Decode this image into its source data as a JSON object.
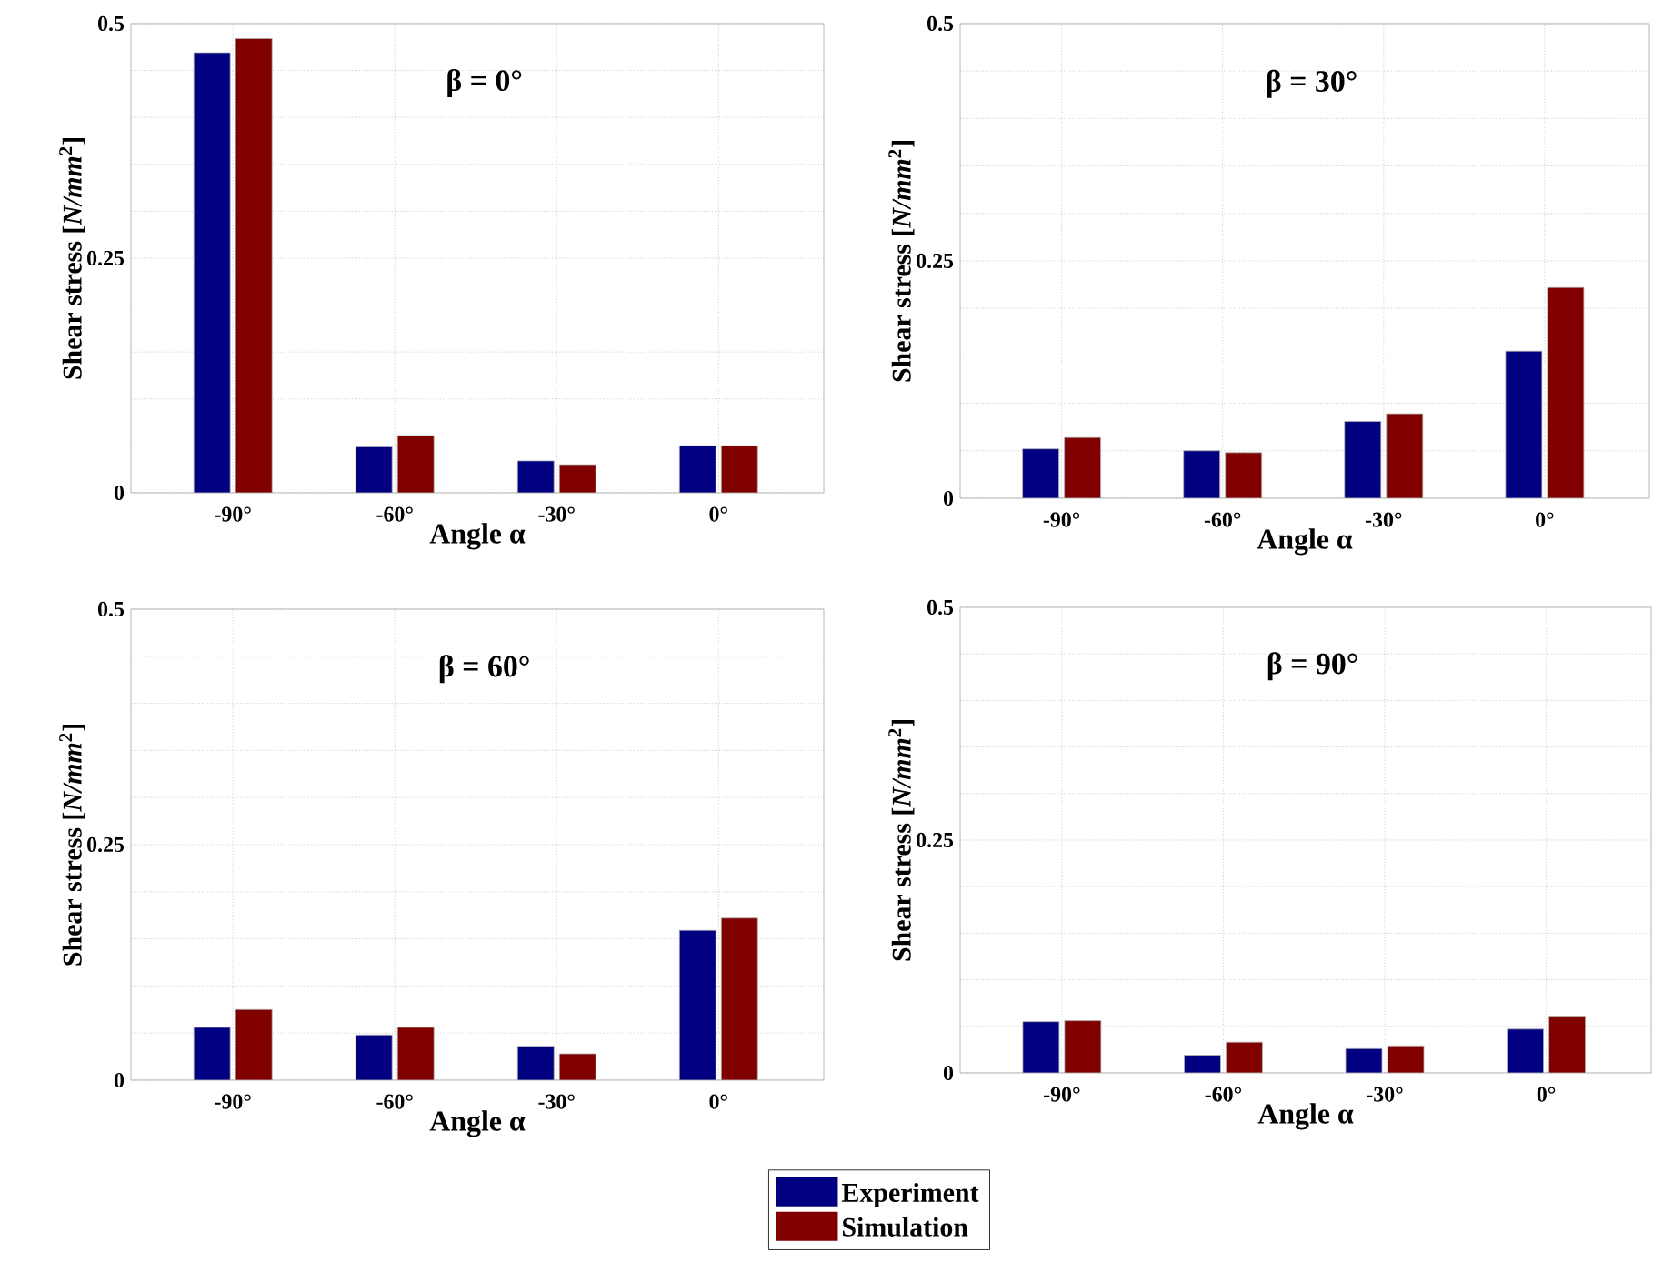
{
  "chart_data": [
    {
      "type": "bar",
      "title": "β = 0°",
      "xlabel": "Angle α",
      "ylabel": "Shear stress [*N/mm*$^{2}$]",
      "categories": [
        "-90°",
        "-60°",
        "-30°",
        "0°"
      ],
      "series": [
        {
          "color": "#000080",
          "values": [
            0.469,
            0.049,
            0.034,
            0.05
          ]
        },
        {
          "color": "#800000",
          "values": [
            0.484,
            0.061,
            0.03,
            0.05
          ]
        }
      ],
      "ylim": [
        0,
        0.5
      ],
      "yticks": [
        0,
        {
          "value": 0.05,
          "label": null
        },
        {
          "value": 0.1,
          "label": null
        },
        {
          "value": 0.15,
          "label": null
        },
        {
          "value": 0.2,
          "label": null
        },
        0.25,
        {
          "value": 0.3,
          "label": null
        },
        {
          "value": 0.35,
          "label": null
        },
        {
          "value": 0.4,
          "label": null
        },
        {
          "value": 0.45,
          "label": null
        },
        0.5
      ],
      "grid": true
    },
    {
      "type": "bar",
      "title": "β = 30°",
      "xlabel": "Angle α",
      "ylabel": "Shear stress [*N/mm*$^{2}$]",
      "categories": [
        "-90°",
        "-60°",
        "-30°",
        "0°"
      ],
      "series": [
        {
          "color": "#000080",
          "values": [
            0.052,
            0.05,
            0.081,
            0.155
          ]
        },
        {
          "color": "#800000",
          "values": [
            0.064,
            0.048,
            0.089,
            0.222
          ]
        }
      ],
      "ylim": [
        0,
        0.5
      ],
      "yticks": [
        0,
        {
          "value": 0.05,
          "label": null
        },
        {
          "value": 0.1,
          "label": null
        },
        {
          "value": 0.15,
          "label": null
        },
        {
          "value": 0.2,
          "label": null
        },
        0.25,
        {
          "value": 0.3,
          "label": null
        },
        {
          "value": 0.35,
          "label": null
        },
        {
          "value": 0.4,
          "label": null
        },
        {
          "value": 0.45,
          "label": null
        },
        0.5
      ],
      "grid": true
    },
    {
      "type": "bar",
      "title": "β = 60°",
      "xlabel": "Angle α",
      "ylabel": "Shear stress [*N/mm*$^{2}$]",
      "categories": [
        "-90°",
        "-60°",
        "-30°",
        "0°"
      ],
      "series": [
        {
          "name": "Experiment",
          "color": "#000080",
          "values": [
            0.056,
            0.048,
            0.036,
            0.159
          ]
        },
        {
          "name": "Simulation",
          "color": "#800000",
          "values": [
            0.075,
            0.056,
            0.028,
            0.172
          ]
        }
      ],
      "ylim": [
        0,
        0.5
      ],
      "yticks": [
        0,
        {
          "value": 0.05,
          "label": null
        },
        {
          "value": 0.1,
          "label": null
        },
        {
          "value": 0.15,
          "label": null
        },
        {
          "value": 0.2,
          "label": null
        },
        0.25,
        {
          "value": 0.3,
          "label": null
        },
        {
          "value": 0.35,
          "label": null
        },
        {
          "value": 0.4,
          "label": null
        },
        {
          "value": 0.45,
          "label": null
        },
        0.5
      ],
      "grid": true,
      "legend": "bottom"
    },
    {
      "type": "bar",
      "title": "β = 90°",
      "xlabel": "Angle α",
      "ylabel": "Shear stress [*N/mm*$^{2}$]",
      "categories": [
        "-90°",
        "-60°",
        "-30°",
        "0°"
      ],
      "series": [
        {
          "color": "#000080",
          "values": [
            0.055,
            0.019,
            0.026,
            0.047
          ]
        },
        {
          "color": "#800000",
          "values": [
            0.056,
            0.033,
            0.029,
            0.061
          ]
        }
      ],
      "ylim": [
        0,
        0.5
      ],
      "yticks": [
        0,
        {
          "value": 0.05,
          "label": null
        },
        {
          "value": 0.1,
          "label": null
        },
        {
          "value": 0.15,
          "label": null
        },
        {
          "value": 0.2,
          "label": null
        },
        0.25,
        {
          "value": 0.3,
          "label": null
        },
        {
          "value": 0.35,
          "label": null
        },
        {
          "value": 0.4,
          "label": null
        },
        {
          "value": 0.45,
          "label": null
        },
        0.5
      ],
      "grid": true
    }
  ]
}
